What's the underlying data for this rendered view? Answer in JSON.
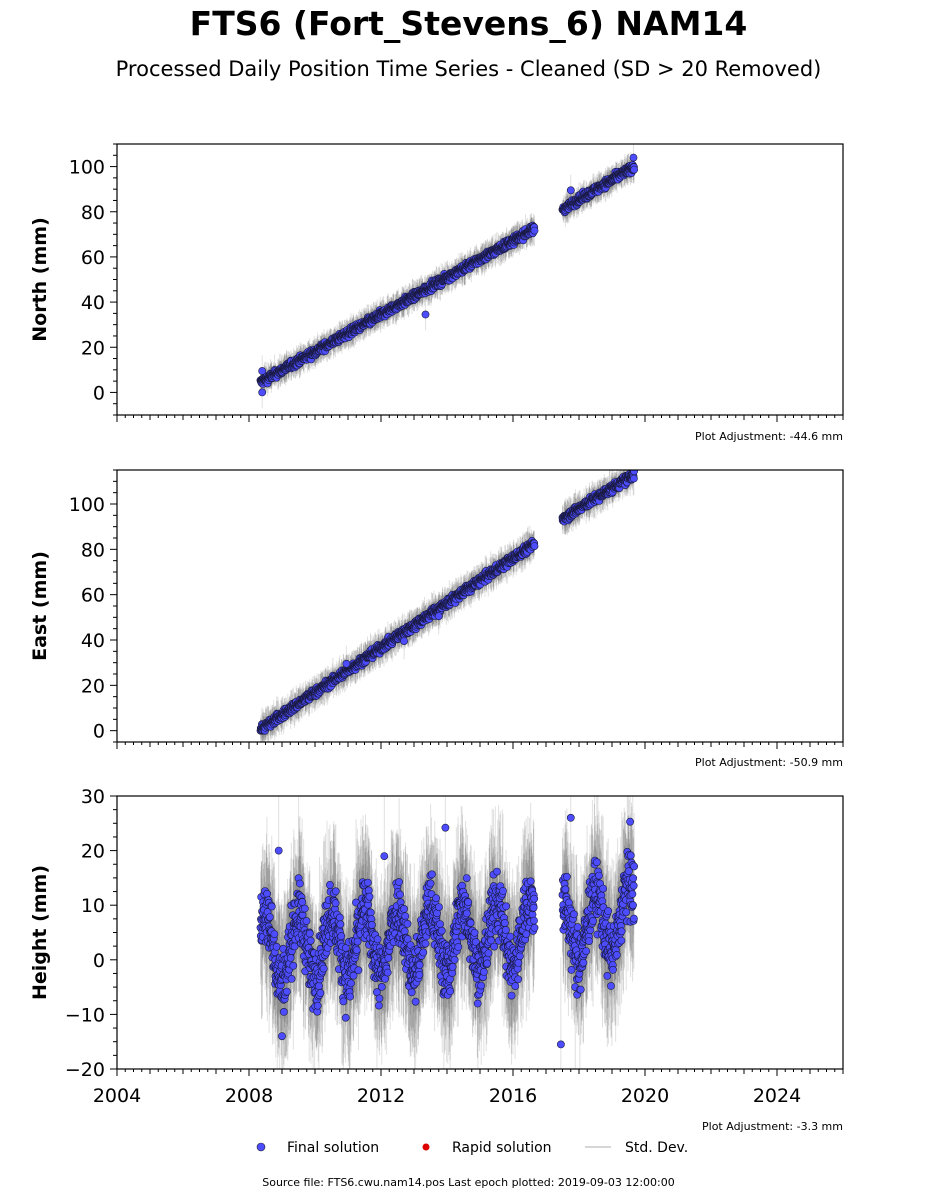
{
  "title": "FTS6 (Fort_Stevens_6) NAM14",
  "subtitle": "Processed Daily Position Time Series - Cleaned (SD > 20 Removed)",
  "source_note": "Source file: FTS6.cwu.nam14.pos  Last epoch plotted: 2019-09-03 12:00:00",
  "legend": {
    "final": "Final solution",
    "rapid": "Rapid solution",
    "sd": "Std. Dev."
  },
  "colors": {
    "final": "#4d4dff",
    "rapid": "#dd0000",
    "sd": "#c8c8c8"
  },
  "chart_data": [
    {
      "type": "scatter",
      "ylabel": "North (mm)",
      "adjustment": "Plot Adjustment: -44.6 mm",
      "xlim": [
        2004,
        2026
      ],
      "ylim": [
        -10,
        110
      ],
      "yticks": [
        0,
        20,
        40,
        60,
        80,
        100
      ],
      "segments": [
        {
          "x0": 2008.35,
          "y0": 4.5,
          "x1": 2016.65,
          "y1": 72.5
        },
        {
          "x0": 2017.5,
          "y0": 81.0,
          "x1": 2019.67,
          "y1": 100.0
        }
      ],
      "noise": 1.2,
      "sd_range": [
        2,
        7
      ],
      "outliers": [
        {
          "x": 2008.4,
          "y": 0
        },
        {
          "x": 2008.4,
          "y": 9.5
        },
        {
          "x": 2013.35,
          "y": 34.5
        },
        {
          "x": 2017.75,
          "y": 89.5
        },
        {
          "x": 2019.65,
          "y": 104
        }
      ]
    },
    {
      "type": "scatter",
      "ylabel": "East (mm)",
      "adjustment": "Plot Adjustment: -50.9 mm",
      "xlim": [
        2004,
        2026
      ],
      "ylim": [
        -5,
        115
      ],
      "yticks": [
        0,
        20,
        40,
        60,
        80,
        100
      ],
      "segments": [
        {
          "x0": 2008.35,
          "y0": 0.5,
          "x1": 2016.65,
          "y1": 82.5
        },
        {
          "x0": 2017.5,
          "y0": 93.5,
          "x1": 2019.67,
          "y1": 113.0
        }
      ],
      "noise": 1.3,
      "sd_range": [
        2,
        8
      ],
      "outliers": [
        {
          "x": 2010.95,
          "y": 29.5
        },
        {
          "x": 2012.7,
          "y": 39.5
        },
        {
          "x": 2013.75,
          "y": 50.5
        }
      ]
    },
    {
      "type": "scatter",
      "ylabel": "Height (mm)",
      "adjustment": "Plot Adjustment: -3.3 mm",
      "xlim": [
        2004,
        2026
      ],
      "ylim": [
        -20,
        30
      ],
      "yticks": [
        -20,
        -10,
        0,
        10,
        20,
        30
      ],
      "ytick_labels": [
        "−20",
        "−10",
        "0",
        "10",
        "20",
        "30"
      ],
      "xticks": [
        2004,
        2008,
        2012,
        2016,
        2020,
        2024
      ],
      "segments": [
        {
          "x0": 2008.35,
          "y0": 2.0,
          "x1": 2016.65,
          "y1": 5.0
        },
        {
          "x0": 2017.5,
          "y0": 5.0,
          "x1": 2019.67,
          "y1": 8.0
        }
      ],
      "seasonal_amplitude": 6,
      "noise": 4.0,
      "sd_range": [
        5,
        16
      ],
      "outliers": [
        {
          "x": 2008.9,
          "y": 20
        },
        {
          "x": 2013.95,
          "y": 24.2
        },
        {
          "x": 2017.45,
          "y": -15.5
        },
        {
          "x": 2017.75,
          "y": 26
        },
        {
          "x": 2019.55,
          "y": 25.3
        },
        {
          "x": 2009.0,
          "y": -14
        },
        {
          "x": 2012.1,
          "y": 19
        }
      ]
    }
  ]
}
